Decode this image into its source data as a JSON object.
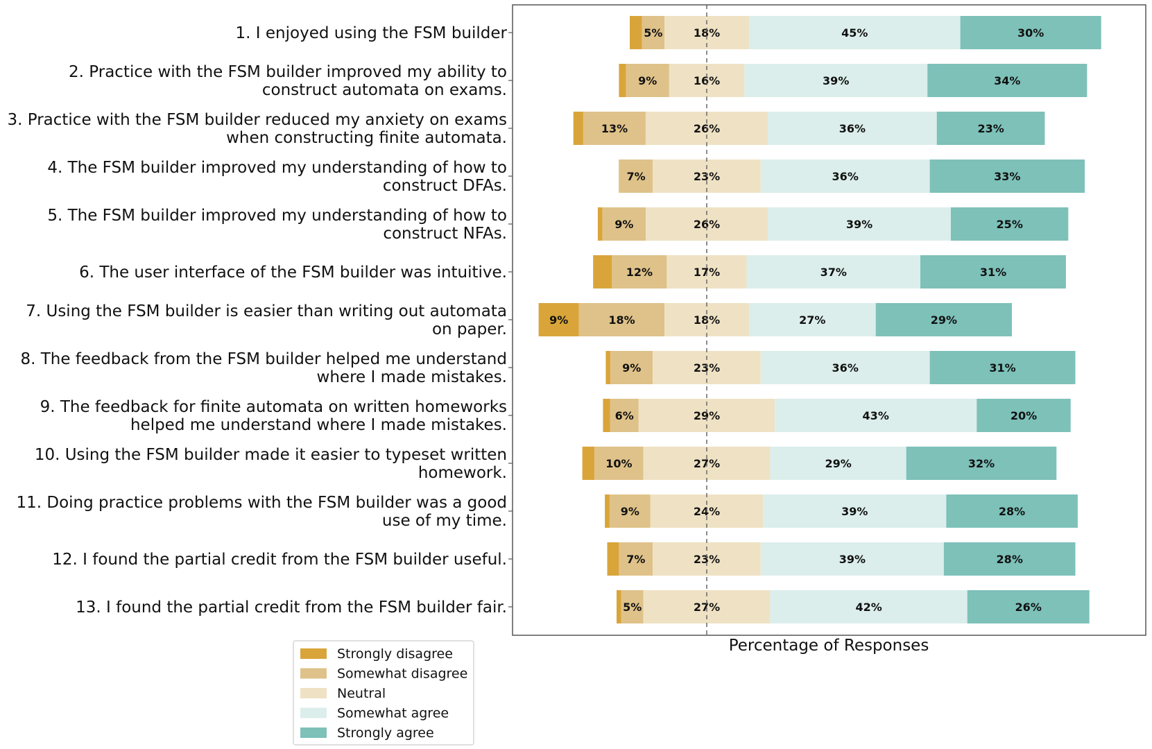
{
  "chart_data": {
    "type": "bar",
    "orientation": "horizontal-diverging-stacked",
    "xlabel": "Percentage of Responses",
    "ylabel": "",
    "title": "",
    "grid": false,
    "center_line": "dashed, at neutral midpoint",
    "legend_position": "below-left",
    "categories": [
      [
        "1. I enjoyed using the FSM builder"
      ],
      [
        "2. Practice with the FSM builder improved my ability to",
        "construct automata on exams."
      ],
      [
        "3. Practice with the FSM builder reduced my anxiety on exams",
        "when constructing finite automata."
      ],
      [
        "4. The FSM builder improved my understanding of how to",
        "construct DFAs."
      ],
      [
        "5. The FSM builder improved my understanding of how to",
        "construct NFAs."
      ],
      [
        "6. The user interface of the FSM builder was intuitive."
      ],
      [
        "7. Using the FSM builder is easier than writing out automata",
        "on paper."
      ],
      [
        "8. The feedback from the FSM builder helped me understand",
        "where I made mistakes."
      ],
      [
        "9. The feedback for finite automata on written homeworks",
        "helped me understand where I made mistakes."
      ],
      [
        "10. Using the FSM builder made it easier to typeset written",
        "homework."
      ],
      [
        "11. Doing practice problems with the FSM builder was a good",
        "use of my time."
      ],
      [
        "12. I found the partial credit from the FSM builder useful."
      ],
      [
        "13. I found the partial credit from the FSM builder fair."
      ]
    ],
    "series": [
      {
        "name": "Strongly disagree",
        "color": "#d9a53a",
        "values": [
          2.6,
          1.5,
          2.1,
          0.1,
          1.0,
          4.0,
          8.6,
          1.0,
          1.5,
          2.6,
          1.0,
          2.5,
          1.0
        ],
        "labels": [
          "",
          "",
          "",
          "",
          "",
          "",
          "9%",
          "",
          "",
          "",
          "",
          "",
          ""
        ]
      },
      {
        "name": "Somewhat disagree",
        "color": "#dfc289",
        "values": [
          4.8,
          9.2,
          13.3,
          7.1,
          9.2,
          11.7,
          18.2,
          9.0,
          6.1,
          10.4,
          8.7,
          7.2,
          4.7
        ],
        "labels": [
          "5%",
          "9%",
          "13%",
          "7%",
          "9%",
          "12%",
          "18%",
          "9%",
          "6%",
          "10%",
          "9%",
          "7%",
          "5%"
        ]
      },
      {
        "name": "Neutral",
        "color": "#efe2c4",
        "values": [
          18,
          16,
          26,
          23,
          26,
          17,
          18,
          23,
          29,
          27,
          24,
          23,
          27
        ],
        "labels": [
          "18%",
          "16%",
          "26%",
          "23%",
          "26%",
          "17%",
          "18%",
          "23%",
          "29%",
          "27%",
          "24%",
          "23%",
          "27%"
        ]
      },
      {
        "name": "Somewhat agree",
        "color": "#dbeeeb",
        "values": [
          45,
          39,
          36,
          36,
          39,
          37,
          27,
          36,
          43,
          29,
          39,
          39,
          42
        ],
        "labels": [
          "45%",
          "39%",
          "36%",
          "36%",
          "39%",
          "37%",
          "27%",
          "36%",
          "43%",
          "29%",
          "39%",
          "39%",
          "42%"
        ]
      },
      {
        "name": "Strongly agree",
        "color": "#7dc1b9",
        "values": [
          30,
          34,
          23,
          33,
          25,
          31,
          29,
          31,
          20,
          32,
          28,
          28,
          26
        ],
        "labels": [
          "30%",
          "34%",
          "23%",
          "33%",
          "25%",
          "31%",
          "29%",
          "31%",
          "20%",
          "32%",
          "28%",
          "28%",
          "26%"
        ]
      }
    ]
  }
}
